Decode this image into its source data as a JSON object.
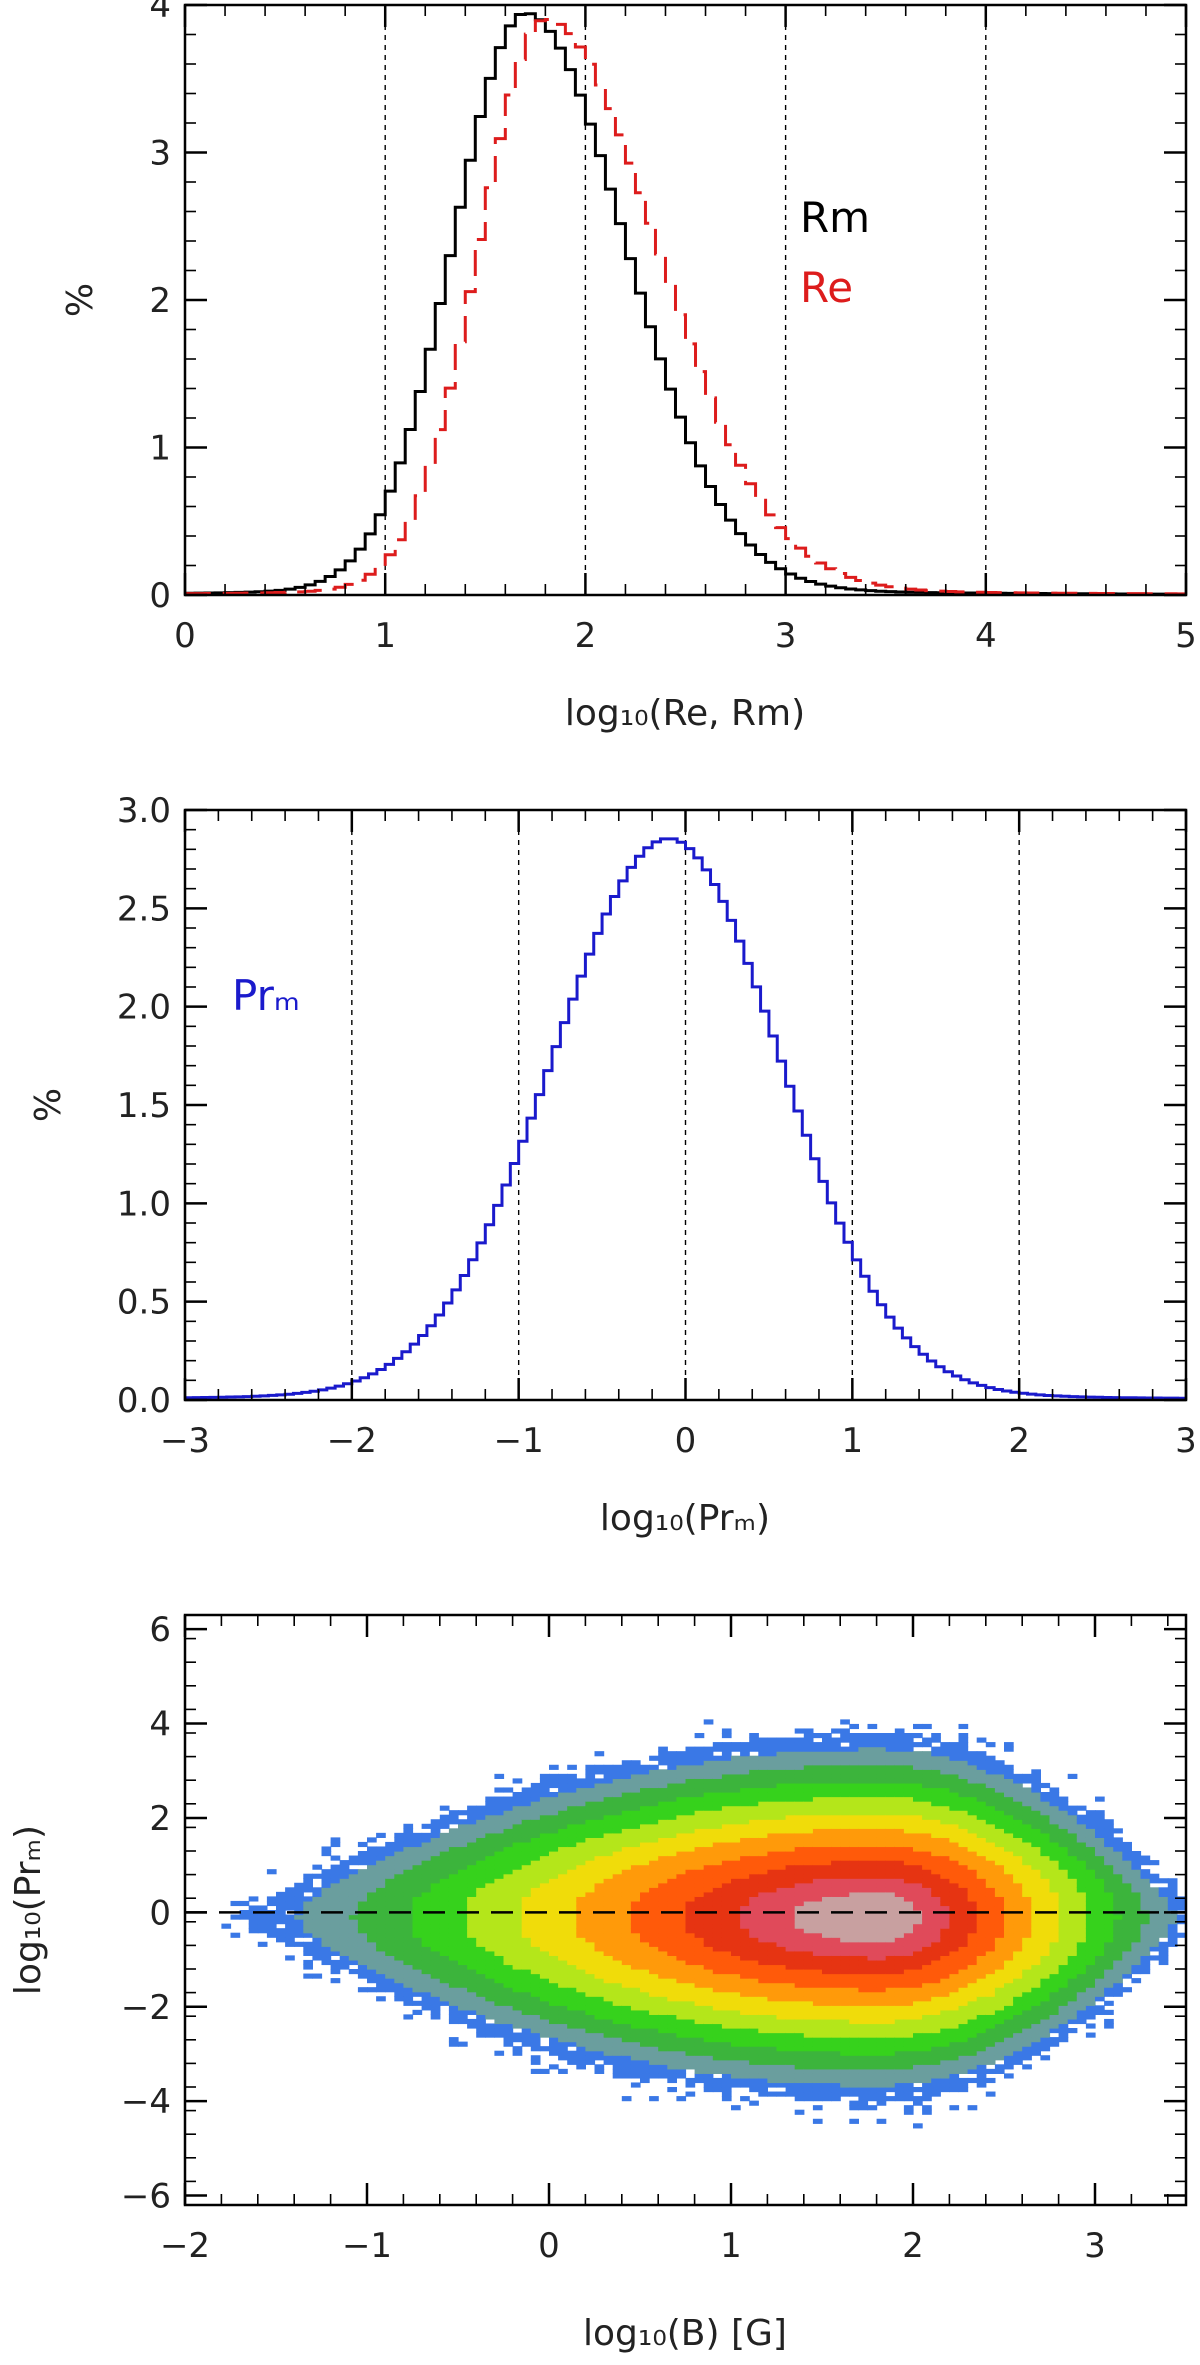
{
  "chart_data": [
    {
      "type": "line",
      "style": "histogram-step",
      "x_range": [
        0,
        5
      ],
      "y_range": [
        0,
        4
      ],
      "x_ticks": [
        "0",
        "1",
        "2",
        "3",
        "4",
        "5"
      ],
      "y_ticks": [
        "0",
        "1",
        "2",
        "3",
        "4"
      ],
      "xlabel": "log₁₀(Re, Rm)",
      "ylabel": "%",
      "grid_x": [
        1,
        2,
        3,
        4
      ],
      "legend": [
        "Rm",
        "Re"
      ],
      "series": [
        {
          "name": "Rm",
          "color": "#000000",
          "dashed": false,
          "peak_x": 1.7,
          "peak_y": 3.87,
          "sigma_left": 0.36,
          "sigma_right": 0.5
        },
        {
          "name": "Re",
          "color": "#dd1c1c",
          "dashed": true,
          "peak_x": 1.8,
          "peak_y": 3.83,
          "sigma_left": 0.33,
          "sigma_right": 0.56
        }
      ]
    },
    {
      "type": "line",
      "style": "histogram-step",
      "x_range": [
        -3,
        3
      ],
      "y_range": [
        0,
        3.0
      ],
      "x_ticks": [
        "−3",
        "−2",
        "−1",
        "0",
        "1",
        "2",
        "3"
      ],
      "y_ticks": [
        "0.0",
        "0.5",
        "1.0",
        "1.5",
        "2.0",
        "2.5",
        "3.0"
      ],
      "xlabel": "log₁₀(Prₘ)",
      "ylabel": "%",
      "grid_x": [
        -2,
        -1,
        0,
        1,
        2
      ],
      "legend": [
        "Prₘ"
      ],
      "series": [
        {
          "name": "Prₘ",
          "color": "#1a1acc",
          "dashed": false,
          "peak_x": -0.1,
          "peak_y": 2.8,
          "sigma_left": 0.7,
          "sigma_right": 0.67
        }
      ]
    },
    {
      "type": "heatmap",
      "x_range": [
        -2,
        3.5
      ],
      "y_range": [
        -6.2,
        6.3
      ],
      "x_ticks": [
        "−2",
        "−1",
        "0",
        "1",
        "2",
        "3"
      ],
      "y_ticks": [
        "−6",
        "−4",
        "−2",
        "0",
        "2",
        "4",
        "6"
      ],
      "xlabel": "log₁₀(B) [G]",
      "ylabel": "log₁₀(Prₘ)",
      "reference_line_y": 0,
      "center": [
        1.8,
        -0.1
      ],
      "colors": [
        "#3a78e6",
        "#6a9e9e",
        "#3cb43c",
        "#36d21c",
        "#b4e61a",
        "#f0dc0a",
        "#ff9a0a",
        "#ff5a0a",
        "#e63412",
        "#e04a5a",
        "#c8a0a0"
      ]
    }
  ]
}
